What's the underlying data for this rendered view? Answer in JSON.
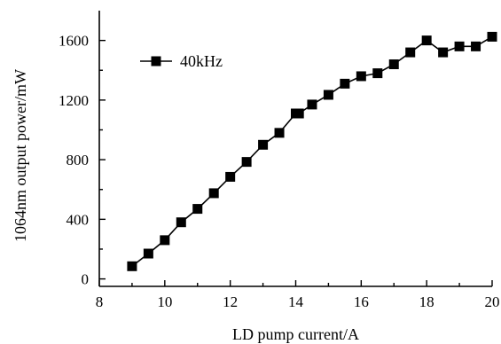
{
  "chart_data": {
    "type": "line",
    "xlabel": "LD pump current/A",
    "ylabel": "1064nm output power/mW",
    "xlim": [
      8,
      20
    ],
    "ylim": [
      -50,
      1800
    ],
    "x_ticks": [
      8,
      10,
      12,
      14,
      16,
      18,
      20
    ],
    "y_ticks": [
      0,
      400,
      800,
      1200,
      1600
    ],
    "grid": false,
    "legend_position": "top-left",
    "series": [
      {
        "name": "40kHz",
        "marker": "square",
        "color": "#000000",
        "x": [
          9.0,
          9.5,
          10.0,
          10.5,
          11.0,
          11.5,
          12.0,
          12.5,
          13.0,
          13.5,
          14.0,
          14.1,
          14.5,
          15.0,
          15.5,
          16.0,
          16.5,
          17.0,
          17.5,
          18.0,
          18.5,
          19.0,
          19.5,
          20.0
        ],
        "y": [
          85,
          170,
          260,
          380,
          470,
          575,
          685,
          785,
          900,
          980,
          1110,
          1110,
          1170,
          1235,
          1310,
          1360,
          1380,
          1440,
          1520,
          1600,
          1520,
          1560,
          1560,
          1625
        ]
      }
    ]
  }
}
